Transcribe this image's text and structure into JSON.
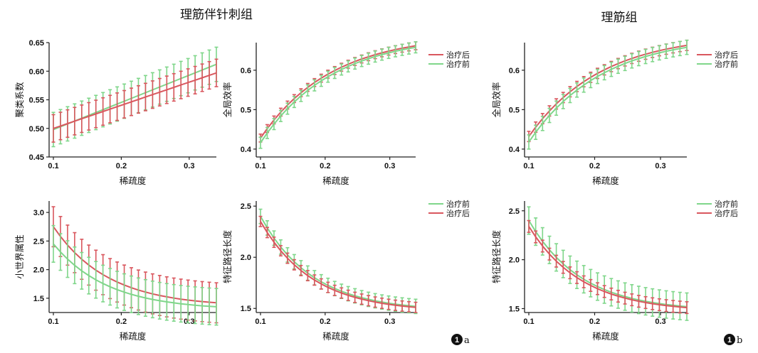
{
  "headers": {
    "left_title": "理筋伴针刺组",
    "right_title": "理筋组"
  },
  "panel_tags": [
    {
      "number": "1",
      "letter": "a"
    },
    {
      "number": "1",
      "letter": "b"
    }
  ],
  "colors": {
    "after": "#d9575e",
    "before": "#7fd68a"
  },
  "chart_data": [
    {
      "type": "line",
      "group": "理筋伴针刺组",
      "xlabel": "稀疏度",
      "ylabel": "聚类系数",
      "xlim": [
        0.1,
        0.34
      ],
      "ylim": [
        0.45,
        0.65
      ],
      "xticks": [
        "0.1",
        "0.2",
        "0.3"
      ],
      "yticks": [
        "0.45",
        "0.50",
        "0.55",
        "0.60",
        "0.65"
      ],
      "legend": [],
      "series": [
        {
          "name": "治疗前",
          "key": "before",
          "x_start": 0.1,
          "x_end": 0.34,
          "start": 0.498,
          "end": 0.612,
          "shape": "linear",
          "err": 0.03
        },
        {
          "name": "治疗后",
          "key": "after",
          "x_start": 0.1,
          "x_end": 0.34,
          "start": 0.5,
          "end": 0.597,
          "shape": "linear",
          "err": 0.024
        }
      ]
    },
    {
      "type": "line",
      "group": "理筋伴针刺组",
      "xlabel": "稀疏度",
      "ylabel": "全局效率",
      "xlim": [
        0.1,
        0.34
      ],
      "ylim": [
        0.38,
        0.67
      ],
      "xticks": [
        "0.1",
        "0.2",
        "0.3"
      ],
      "yticks": [
        "0.4",
        "0.5",
        "0.6"
      ],
      "legend": [
        "治疗后",
        "治疗前"
      ],
      "series": [
        {
          "name": "治疗后",
          "key": "after",
          "x_start": 0.1,
          "x_end": 0.34,
          "start": 0.428,
          "end": 0.662,
          "shape": "concave",
          "err": 0.01
        },
        {
          "name": "治疗前",
          "key": "before",
          "x_start": 0.1,
          "x_end": 0.34,
          "start": 0.416,
          "end": 0.658,
          "shape": "concave",
          "err": 0.014
        }
      ]
    },
    {
      "type": "line",
      "group": "理筋组",
      "xlabel": "稀疏度",
      "ylabel": "全局效率",
      "xlim": [
        0.1,
        0.34
      ],
      "ylim": [
        0.38,
        0.67
      ],
      "xticks": [
        "0.1",
        "0.2",
        "0.3"
      ],
      "yticks": [
        "0.4",
        "0.5",
        "0.6"
      ],
      "legend": [
        "治疗后",
        "治疗前"
      ],
      "series": [
        {
          "name": "治疗后",
          "key": "after",
          "x_start": 0.1,
          "x_end": 0.34,
          "start": 0.432,
          "end": 0.663,
          "shape": "concave",
          "err": 0.013
        },
        {
          "name": "治疗前",
          "key": "before",
          "x_start": 0.1,
          "x_end": 0.34,
          "start": 0.418,
          "end": 0.658,
          "shape": "concave",
          "err": 0.018
        }
      ]
    },
    {
      "type": "line",
      "group": "理筋伴针刺组",
      "xlabel": "稀疏度",
      "ylabel": "小世界属性",
      "xlim": [
        0.1,
        0.34
      ],
      "ylim": [
        1.25,
        3.2
      ],
      "xticks": [
        "0.1",
        "0.2",
        "0.3"
      ],
      "yticks": [
        "1.5",
        "2.0",
        "2.5",
        "3.0"
      ],
      "legend": [],
      "series": [
        {
          "name": "治疗后",
          "key": "after",
          "x_start": 0.1,
          "x_end": 0.34,
          "start": 2.75,
          "end": 1.42,
          "shape": "decay",
          "err": 0.35
        },
        {
          "name": "治疗前",
          "key": "before",
          "x_start": 0.1,
          "x_end": 0.34,
          "start": 2.45,
          "end": 1.35,
          "shape": "decay",
          "err": 0.32
        }
      ]
    },
    {
      "type": "line",
      "group": "理筋伴针刺组",
      "xlabel": "稀疏度",
      "ylabel": "特征路径长度",
      "xlim": [
        0.1,
        0.34
      ],
      "ylim": [
        1.46,
        2.55
      ],
      "xticks": [
        "0.1",
        "0.2",
        "0.3"
      ],
      "yticks": [
        "1.5",
        "2.0",
        "2.5"
      ],
      "legend": [
        "治疗前",
        "治疗后"
      ],
      "series": [
        {
          "name": "治疗前",
          "key": "before",
          "x_start": 0.1,
          "x_end": 0.34,
          "start": 2.4,
          "end": 1.52,
          "shape": "decay",
          "err": 0.07
        },
        {
          "name": "治疗后",
          "key": "after",
          "x_start": 0.1,
          "x_end": 0.34,
          "start": 2.35,
          "end": 1.51,
          "shape": "decay",
          "err": 0.05
        }
      ]
    },
    {
      "type": "line",
      "group": "理筋组",
      "xlabel": "稀疏度",
      "ylabel": "特征路径长度",
      "xlim": [
        0.1,
        0.34
      ],
      "ylim": [
        1.46,
        2.6
      ],
      "xticks": [
        "0.1",
        "0.2",
        "0.3"
      ],
      "yticks": [
        "1.5",
        "2.0",
        "2.5"
      ],
      "legend": [
        "治疗前",
        "治疗后"
      ],
      "series": [
        {
          "name": "治疗前",
          "key": "before",
          "x_start": 0.1,
          "x_end": 0.34,
          "start": 2.4,
          "end": 1.52,
          "shape": "decay",
          "err": 0.14
        },
        {
          "name": "治疗后",
          "key": "after",
          "x_start": 0.1,
          "x_end": 0.34,
          "start": 2.34,
          "end": 1.51,
          "shape": "decay",
          "err": 0.06
        }
      ]
    }
  ]
}
